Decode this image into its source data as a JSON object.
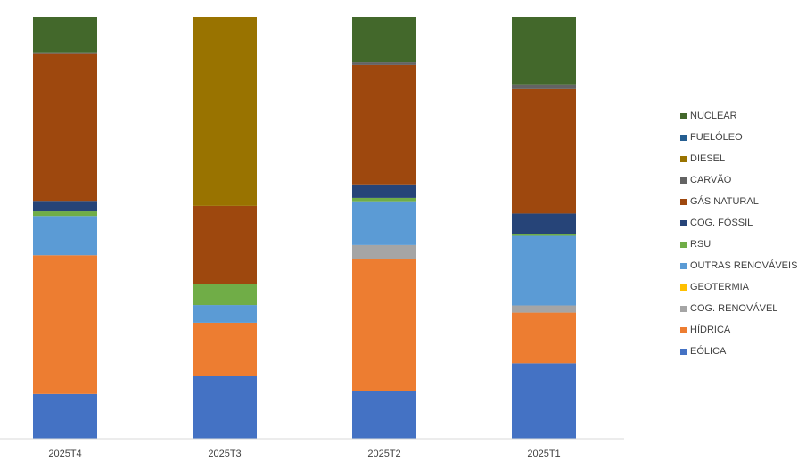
{
  "chart_data": {
    "type": "bar",
    "stacked": true,
    "percent_stacked": true,
    "categories": [
      "2025T4",
      "2025T3",
      "2025T2",
      "2025T1"
    ],
    "ylim": [
      0,
      100
    ],
    "grid": false,
    "legend_position": "right",
    "series": [
      {
        "name": "EÓLICA",
        "color": "#4472C4",
        "values": [
          10.6,
          14.8,
          11.4,
          17.9
        ]
      },
      {
        "name": "HÍDRICA",
        "color": "#ED7D31",
        "values": [
          32.9,
          12.7,
          31.1,
          12.0
        ]
      },
      {
        "name": "COG. RENOVÁVEL",
        "color": "#A5A5A5",
        "values": [
          0.0,
          0.0,
          3.4,
          1.7
        ]
      },
      {
        "name": "GEOTERMIA",
        "color": "#FFC000",
        "values": [
          0.0,
          0.0,
          0.0,
          0.0
        ]
      },
      {
        "name": "OUTRAS RENOVÁVEIS",
        "color": "#5B9BD5",
        "values": [
          9.3,
          4.2,
          10.4,
          16.5
        ]
      },
      {
        "name": "RSU",
        "color": "#70AD47",
        "values": [
          1.1,
          4.9,
          0.8,
          0.4
        ]
      },
      {
        "name": "COG. FÓSSIL",
        "color": "#264478",
        "values": [
          2.5,
          0.0,
          3.2,
          4.9
        ]
      },
      {
        "name": "GÁS NATURAL",
        "color": "#9E480E",
        "values": [
          34.8,
          18.6,
          28.3,
          29.5
        ]
      },
      {
        "name": "CARVÃO",
        "color": "#636363",
        "values": [
          0.4,
          0.0,
          0.6,
          1.1
        ]
      },
      {
        "name": "DIESEL",
        "color": "#997300",
        "values": [
          0.0,
          44.8,
          0.0,
          0.0
        ]
      },
      {
        "name": "FUELÓLEO",
        "color": "#255E91",
        "values": [
          0.0,
          0.0,
          0.0,
          0.0
        ]
      },
      {
        "name": "NUCLEAR",
        "color": "#43682B",
        "values": [
          8.4,
          0.0,
          10.8,
          16.0
        ]
      }
    ],
    "title": "",
    "xlabel": "",
    "ylabel": ""
  }
}
